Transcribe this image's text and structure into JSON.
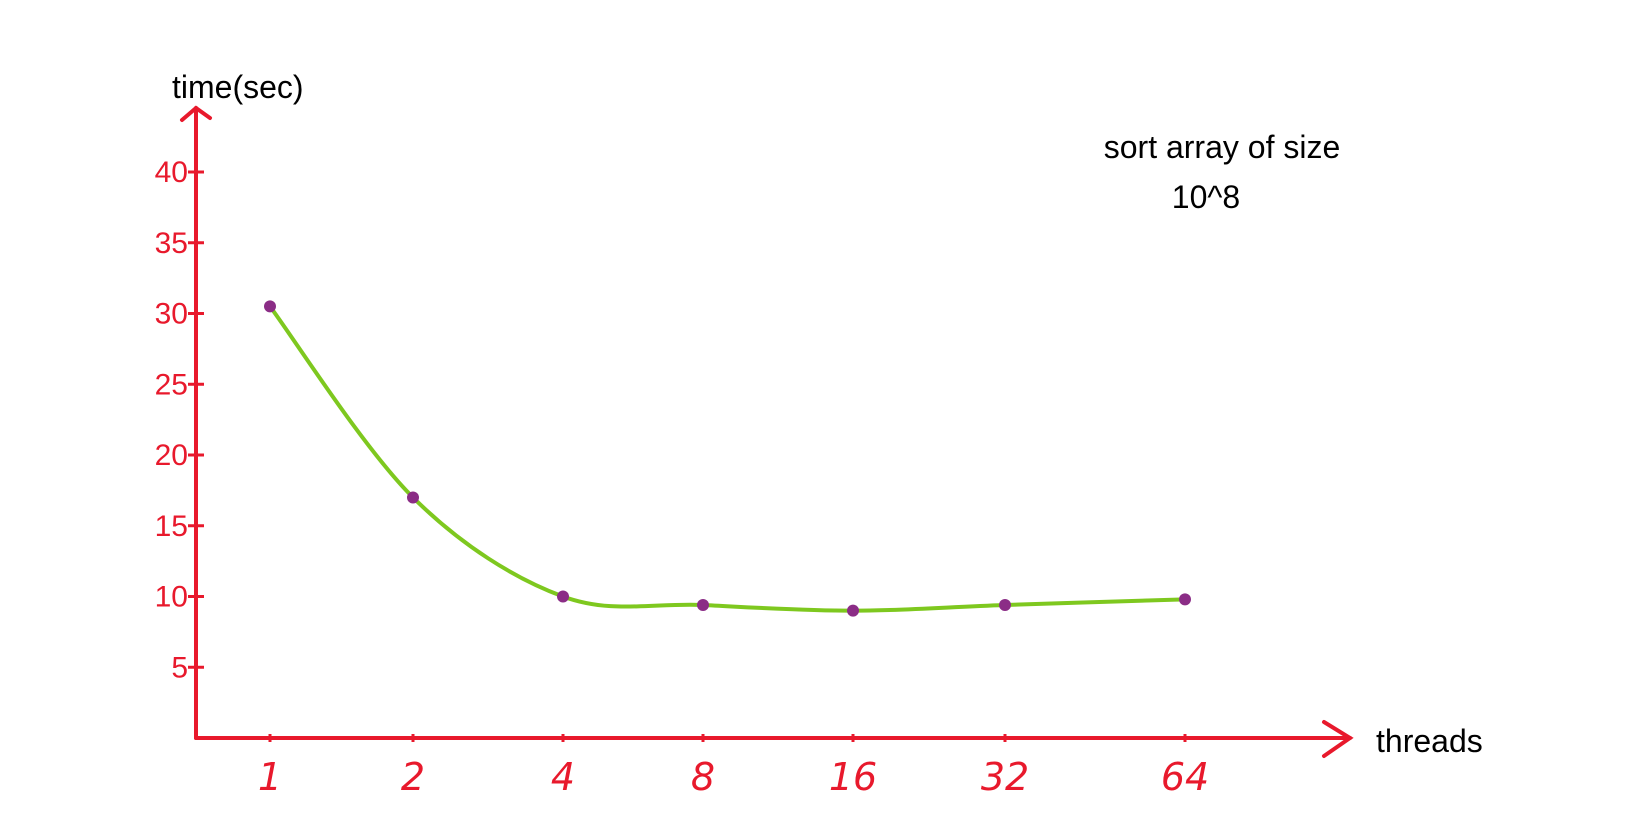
{
  "chart_data": {
    "type": "line",
    "title": "sort array of size",
    "subtitle": "10^8",
    "xlabel": "threads",
    "ylabel": "time(sec)",
    "categories": [
      "1",
      "2",
      "4",
      "8",
      "16",
      "32",
      "64"
    ],
    "series": [
      {
        "values": [
          30.5,
          17.0,
          10.0,
          9.4,
          9.0,
          9.4,
          9.8
        ]
      }
    ],
    "yticks": [
      5,
      10,
      15,
      20,
      25,
      30,
      35,
      40
    ],
    "ylim": [
      0,
      43
    ],
    "grid": false,
    "colors": {
      "axis": "#e8192c",
      "line": "#7ec81f",
      "points": "#8b2d86",
      "text": "#000000"
    }
  }
}
